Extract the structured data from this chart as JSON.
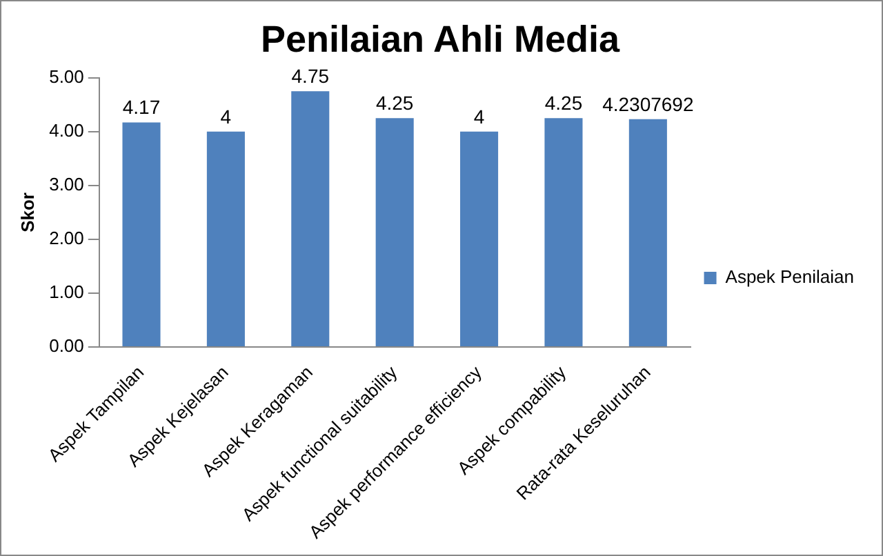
{
  "chart_data": {
    "type": "bar",
    "title": "Penilaian Ahli Media",
    "ylabel": "Skor",
    "categories": [
      "Aspek Tampilan",
      "Aspek Kejelasan",
      "Aspek Keragaman",
      "Aspek functional suitability",
      "Aspek performance efficiency",
      "Aspek compability",
      "Rata-rata Keseluruhan"
    ],
    "series": [
      {
        "name": "Aspek Penilaian",
        "color": "#4f81bd",
        "values": [
          4.17,
          4,
          4.75,
          4.25,
          4,
          4.25,
          4.2307692
        ]
      }
    ],
    "ylim": [
      0,
      5
    ],
    "yticks": [
      {
        "value": 0,
        "label": "0.00"
      },
      {
        "value": 1,
        "label": "1.00"
      },
      {
        "value": 2,
        "label": "2.00"
      },
      {
        "value": 3,
        "label": "3.00"
      },
      {
        "value": 4,
        "label": "4.00"
      },
      {
        "value": 5,
        "label": "5.00"
      }
    ],
    "grid": false,
    "legend": "right",
    "data_labels": true
  }
}
